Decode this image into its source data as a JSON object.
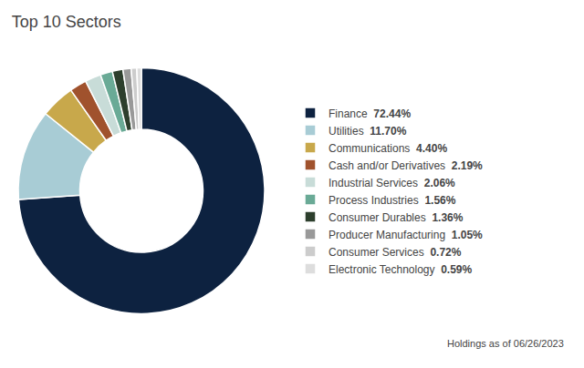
{
  "chart_data": {
    "type": "pie",
    "title": "Top 10 Sectors",
    "categories": [
      "Finance",
      "Utilities",
      "Communications",
      "Cash and/or Derivatives",
      "Industrial Services",
      "Process Industries",
      "Consumer Durables",
      "Producer Manufacturing",
      "Consumer Services",
      "Electronic Technology"
    ],
    "values": [
      72.44,
      11.7,
      4.4,
      2.19,
      2.06,
      1.56,
      1.36,
      1.05,
      0.72,
      0.59
    ],
    "value_labels": [
      "72.44%",
      "11.70%",
      "4.40%",
      "2.19%",
      "2.06%",
      "1.56%",
      "1.36%",
      "1.05%",
      "0.72%",
      "0.59%"
    ],
    "colors": [
      "#0d2240",
      "#a8ccd5",
      "#c8a84b",
      "#a0522d",
      "#c8dcd8",
      "#6aaa96",
      "#2d3f2d",
      "#999999",
      "#cccccc",
      "#dddddd"
    ],
    "legend": "right",
    "annotations": [
      "Holdings as of 06/26/2023"
    ]
  }
}
